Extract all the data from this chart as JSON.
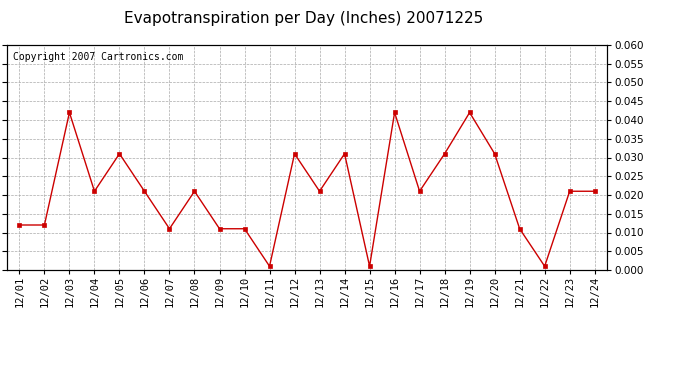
{
  "title": "Evapotranspiration per Day (Inches) 20071225",
  "copyright": "Copyright 2007 Cartronics.com",
  "x_labels": [
    "12/01",
    "12/02",
    "12/03",
    "12/04",
    "12/05",
    "12/06",
    "12/07",
    "12/08",
    "12/09",
    "12/10",
    "12/11",
    "12/12",
    "12/13",
    "12/14",
    "12/15",
    "12/16",
    "12/17",
    "12/18",
    "12/19",
    "12/20",
    "12/21",
    "12/22",
    "12/23",
    "12/24"
  ],
  "y_values": [
    0.012,
    0.012,
    0.042,
    0.021,
    0.031,
    0.021,
    0.011,
    0.021,
    0.011,
    0.011,
    0.001,
    0.031,
    0.021,
    0.031,
    0.001,
    0.042,
    0.021,
    0.031,
    0.042,
    0.031,
    0.011,
    0.001,
    0.021,
    0.021
  ],
  "ylim": [
    0.0,
    0.06
  ],
  "yticks": [
    0.0,
    0.005,
    0.01,
    0.015,
    0.02,
    0.025,
    0.03,
    0.035,
    0.04,
    0.045,
    0.05,
    0.055,
    0.06
  ],
  "line_color": "#cc0000",
  "marker": "s",
  "marker_size": 3,
  "grid_color": "#aaaaaa",
  "grid_style": "--",
  "background_color": "#ffffff",
  "border_color": "#000000",
  "title_fontsize": 11,
  "copyright_fontsize": 7,
  "tick_fontsize": 7.5,
  "label_fontsize": 7.5
}
